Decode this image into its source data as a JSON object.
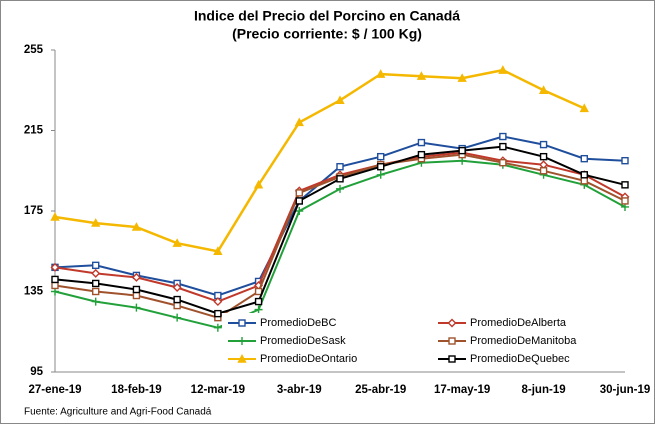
{
  "chart_data": {
    "type": "line",
    "title": "Indice del Precio del Porcino en Canadá",
    "subtitle": "(Precio corriente: $ / 100 Kg)",
    "source": "Fuente: Agriculture and Agri-Food Canadá",
    "categories": [
      "27-ene-19",
      null,
      "18-feb-19",
      null,
      "12-mar-19",
      null,
      "3-abr-19",
      null,
      "25-abr-19",
      null,
      "17-may-19",
      null,
      "8-jun-19",
      null,
      "30-jun-19"
    ],
    "ylim": [
      95,
      255
    ],
    "yticks": [
      95,
      135,
      175,
      215,
      255
    ],
    "series": [
      {
        "name": "PromedioDeBC",
        "color": "#1f4e9c",
        "marker": "square",
        "values": [
          147,
          148,
          143,
          139,
          133,
          140,
          180,
          197,
          202,
          209,
          206,
          212,
          208,
          201,
          200
        ]
      },
      {
        "name": "PromedioDeAlberta",
        "color": "#c0392b",
        "marker": "diamond",
        "values": [
          147,
          144,
          142,
          137,
          130,
          138,
          185,
          193,
          198,
          202,
          204,
          200,
          198,
          193,
          182
        ]
      },
      {
        "name": "PromedioDeSask",
        "color": "#22a03a",
        "marker": "plus",
        "values": [
          135,
          130,
          127,
          122,
          117,
          126,
          175,
          186,
          193,
          199,
          200,
          198,
          193,
          188,
          177
        ]
      },
      {
        "name": "PromedioDeManitoba",
        "color": "#a0522d",
        "marker": "square",
        "values": [
          138,
          135,
          133,
          128,
          122,
          135,
          184,
          192,
          198,
          201,
          203,
          199,
          195,
          190,
          180
        ]
      },
      {
        "name": "PromedioDeOntario",
        "color": "#f5b800",
        "marker": "triangle",
        "values": [
          172,
          169,
          167,
          159,
          155,
          188,
          219,
          230,
          243,
          242,
          241,
          245,
          235,
          226,
          null
        ]
      },
      {
        "name": "PromedioDeQuebec",
        "color": "#000000",
        "marker": "square",
        "values": [
          141,
          139,
          136,
          131,
          124,
          130,
          180,
          191,
          197,
          203,
          205,
          207,
          202,
          193,
          188
        ]
      }
    ]
  }
}
